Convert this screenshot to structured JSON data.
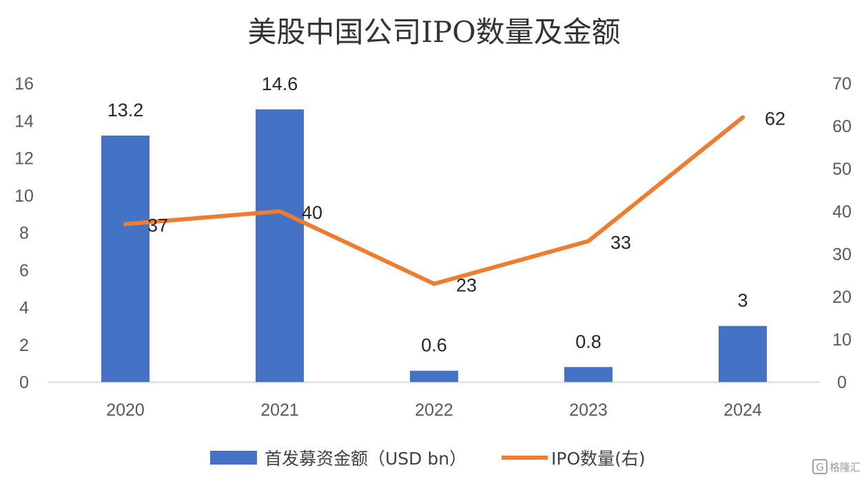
{
  "chart_data": {
    "type": "bar",
    "title": "美股中国公司IPO数量及金额",
    "categories": [
      "2020",
      "2021",
      "2022",
      "2023",
      "2024"
    ],
    "series": [
      {
        "name": "首发募资金额（USD bn）",
        "type": "bar",
        "axis": "left",
        "color": "#4472C4",
        "values": [
          13.2,
          14.6,
          0.6,
          0.8,
          3
        ],
        "labels": [
          "13.2",
          "14.6",
          "0.6",
          "0.8",
          "3"
        ]
      },
      {
        "name": "IPO数量(右)",
        "type": "line",
        "axis": "right",
        "color": "#ED7D31",
        "values": [
          37,
          40,
          23,
          33,
          62
        ],
        "labels": [
          "37",
          "40",
          "23",
          "33",
          "62"
        ]
      }
    ],
    "y_left": {
      "ylim": [
        0,
        16
      ],
      "ticks": [
        "0",
        "2",
        "4",
        "6",
        "8",
        "10",
        "12",
        "14",
        "16"
      ]
    },
    "y_right": {
      "ylim": [
        0,
        70
      ],
      "ticks": [
        "0",
        "10",
        "20",
        "30",
        "40",
        "50",
        "60",
        "70"
      ]
    },
    "grid": false,
    "legend": "bottom"
  },
  "watermark": {
    "text": "格隆汇",
    "icon": "glh-logo-icon"
  }
}
